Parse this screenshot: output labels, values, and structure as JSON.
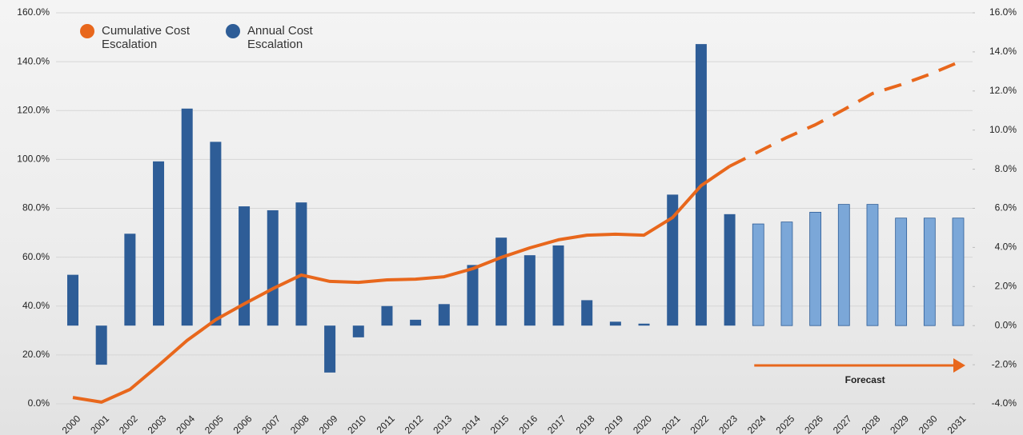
{
  "chart_data": {
    "type": "bar_line",
    "categories": [
      "2000",
      "2001",
      "2002",
      "2003",
      "2004",
      "2005",
      "2006",
      "2007",
      "2008",
      "2009",
      "2010",
      "2011",
      "2012",
      "2013",
      "2014",
      "2015",
      "2016",
      "2017",
      "2018",
      "2019",
      "2020",
      "2021",
      "2022",
      "2023",
      "2024",
      "2025",
      "2026",
      "2027",
      "2028",
      "2029",
      "2030",
      "2031"
    ],
    "series": [
      {
        "name": "Cumulative Cost Escalation",
        "type": "line",
        "axis": "y",
        "color": "#e8671c",
        "dashed_from": "2023",
        "values": [
          2.6,
          0.7,
          5.9,
          15.7,
          25.9,
          34.4,
          40.9,
          47.1,
          52.7,
          50.1,
          49.7,
          50.7,
          51.0,
          52.0,
          55.3,
          59.9,
          63.8,
          67.1,
          69.0,
          69.4,
          69.0,
          76.2,
          89.3,
          97.2,
          103.1,
          109.0,
          114.2,
          120.4,
          127.0,
          130.6,
          134.8,
          139.7
        ]
      },
      {
        "name": "Annual Cost Escalation",
        "type": "bar",
        "axis": "y2",
        "color": "#2e5d97",
        "colors": [
          "#2e5d97",
          "#2e5d97",
          "#2e5d97",
          "#2e5d97",
          "#2e5d97",
          "#2e5d97",
          "#2e5d97",
          "#2e5d97",
          "#2e5d97",
          "#2e5d97",
          "#2e5d97",
          "#2e5d97",
          "#2e5d97",
          "#2e5d97",
          "#2e5d97",
          "#2e5d97",
          "#2e5d97",
          "#2e5d97",
          "#2e5d97",
          "#2e5d97",
          "#2e5d97",
          "#2e5d97",
          "#2e5d97",
          "#2e5d97",
          "#7ba7d8",
          "#7ba7d8",
          "#7ba7d8",
          "#7ba7d8",
          "#7ba7d8",
          "#7ba7d8",
          "#7ba7d8",
          "#7ba7d8"
        ],
        "values": [
          2.6,
          -2.0,
          4.7,
          8.4,
          11.1,
          9.4,
          6.1,
          5.9,
          6.3,
          -2.4,
          -0.6,
          1.0,
          0.3,
          1.1,
          3.1,
          4.5,
          3.6,
          4.1,
          1.3,
          0.2,
          0.1,
          6.7,
          14.4,
          5.7,
          5.2,
          5.3,
          5.8,
          6.2,
          6.2,
          5.5,
          5.5,
          5.5
        ]
      }
    ],
    "ylim": [
      0,
      160
    ],
    "yticks": [
      {
        "value": 0,
        "label": "0.0%"
      },
      {
        "value": 20,
        "label": "20.0%"
      },
      {
        "value": 40,
        "label": "40.0%"
      },
      {
        "value": 60,
        "label": "60.0%"
      },
      {
        "value": 80,
        "label": "80.0%"
      },
      {
        "value": 100,
        "label": "100.0%"
      },
      {
        "value": 120,
        "label": "120.0%"
      },
      {
        "value": 140,
        "label": "140.0%"
      },
      {
        "value": 160,
        "label": "160.0%"
      }
    ],
    "y2lim": [
      -4,
      16
    ],
    "y2ticks": [
      {
        "value": -4,
        "label": "-4.0%"
      },
      {
        "value": -2,
        "label": "-2.0%"
      },
      {
        "value": 0,
        "label": "0.0%"
      },
      {
        "value": 2,
        "label": "2.0%"
      },
      {
        "value": 4,
        "label": "4.0%"
      },
      {
        "value": 6,
        "label": "6.0%"
      },
      {
        "value": 8,
        "label": "8.0%"
      },
      {
        "value": 10,
        "label": "10.0%"
      },
      {
        "value": 12,
        "label": "12.0%"
      },
      {
        "value": 14,
        "label": "14.0%"
      },
      {
        "value": 16,
        "label": "16.0%"
      }
    ],
    "grid": true,
    "legend": "upper left",
    "annotation": {
      "text": "Forecast",
      "from": "2024",
      "to": "2031",
      "color": "#e8671c"
    }
  }
}
